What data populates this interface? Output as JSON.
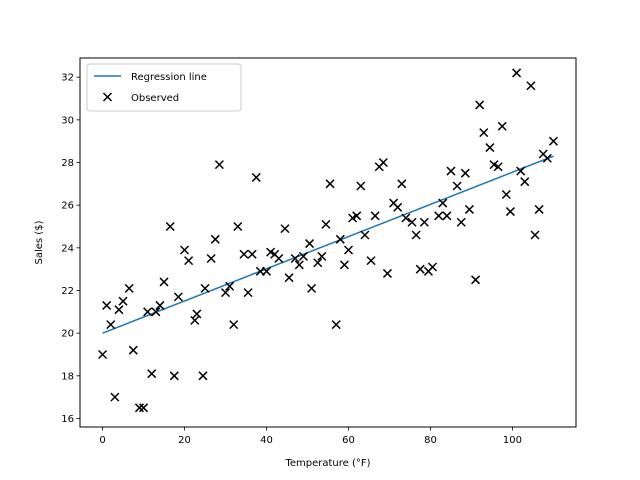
{
  "chart_data": {
    "type": "scatter",
    "title": "",
    "xlabel": "Temperature (°F)",
    "ylabel": "Sales ($)",
    "xlim": [
      -5.5,
      115.5
    ],
    "ylim": [
      15.6,
      32.9
    ],
    "xticks": [
      0,
      20,
      40,
      60,
      80,
      100
    ],
    "yticks": [
      16,
      18,
      20,
      22,
      24,
      26,
      28,
      30,
      32
    ],
    "grid": false,
    "legend_position": "top-left",
    "colors": {
      "line": "#1f77b4",
      "marker": "#000000"
    },
    "series": [
      {
        "name": "Regression line",
        "kind": "line",
        "x": [
          0,
          110
        ],
        "y": [
          20.0,
          28.3
        ]
      },
      {
        "name": "Observed",
        "kind": "scatter",
        "marker": "x",
        "points": [
          [
            0,
            19.0
          ],
          [
            1,
            21.3
          ],
          [
            2,
            20.4
          ],
          [
            3,
            17.0
          ],
          [
            4,
            21.1
          ],
          [
            5,
            21.5
          ],
          [
            6.5,
            22.1
          ],
          [
            7.5,
            19.2
          ],
          [
            9,
            16.5
          ],
          [
            10,
            16.5
          ],
          [
            11,
            21.0
          ],
          [
            12,
            18.1
          ],
          [
            13,
            21.0
          ],
          [
            14,
            21.3
          ],
          [
            15,
            22.4
          ],
          [
            16.5,
            25.0
          ],
          [
            17.5,
            18.0
          ],
          [
            18.5,
            21.7
          ],
          [
            20,
            23.9
          ],
          [
            21,
            23.4
          ],
          [
            22.5,
            20.6
          ],
          [
            23,
            20.9
          ],
          [
            24.5,
            18.0
          ],
          [
            25,
            22.1
          ],
          [
            26.5,
            23.5
          ],
          [
            27.5,
            24.4
          ],
          [
            28.5,
            27.9
          ],
          [
            30,
            21.9
          ],
          [
            31,
            22.2
          ],
          [
            32,
            20.4
          ],
          [
            33,
            25.0
          ],
          [
            34.5,
            23.7
          ],
          [
            35.5,
            21.9
          ],
          [
            36.5,
            23.7
          ],
          [
            37.5,
            27.3
          ],
          [
            38.5,
            22.9
          ],
          [
            40,
            22.9
          ],
          [
            41,
            23.8
          ],
          [
            42,
            23.7
          ],
          [
            43,
            23.5
          ],
          [
            44.5,
            24.9
          ],
          [
            45.5,
            22.6
          ],
          [
            47,
            23.5
          ],
          [
            48,
            23.2
          ],
          [
            49,
            23.6
          ],
          [
            50.5,
            24.2
          ],
          [
            51,
            22.1
          ],
          [
            52.5,
            23.3
          ],
          [
            53.5,
            23.6
          ],
          [
            54.5,
            25.1
          ],
          [
            55.5,
            27.0
          ],
          [
            57,
            20.4
          ],
          [
            58,
            24.4
          ],
          [
            59,
            23.2
          ],
          [
            60,
            23.9
          ],
          [
            61,
            25.4
          ],
          [
            62,
            25.5
          ],
          [
            63,
            26.9
          ],
          [
            64,
            24.6
          ],
          [
            65.5,
            23.4
          ],
          [
            66.5,
            25.5
          ],
          [
            67.5,
            27.8
          ],
          [
            68.5,
            28.0
          ],
          [
            69.5,
            22.8
          ],
          [
            71,
            26.1
          ],
          [
            72,
            25.9
          ],
          [
            73,
            27.0
          ],
          [
            74,
            25.4
          ],
          [
            75.5,
            25.2
          ],
          [
            76.5,
            24.6
          ],
          [
            77.5,
            23.0
          ],
          [
            78.5,
            25.2
          ],
          [
            79.5,
            22.9
          ],
          [
            80.5,
            23.1
          ],
          [
            82,
            25.5
          ],
          [
            83,
            26.1
          ],
          [
            84,
            25.5
          ],
          [
            85,
            27.6
          ],
          [
            86.5,
            26.9
          ],
          [
            87.5,
            25.2
          ],
          [
            88.5,
            27.5
          ],
          [
            89.5,
            25.8
          ],
          [
            91,
            22.5
          ],
          [
            92,
            30.7
          ],
          [
            93,
            29.4
          ],
          [
            94.5,
            28.7
          ],
          [
            95.5,
            27.9
          ],
          [
            96.5,
            27.8
          ],
          [
            97.5,
            29.7
          ],
          [
            98.5,
            26.5
          ],
          [
            99.5,
            25.7
          ],
          [
            101,
            32.2
          ],
          [
            102,
            27.6
          ],
          [
            103,
            27.1
          ],
          [
            104.5,
            31.6
          ],
          [
            105.5,
            24.6
          ],
          [
            106.5,
            25.8
          ],
          [
            107.5,
            28.4
          ],
          [
            108.5,
            28.2
          ],
          [
            110,
            29.0
          ]
        ]
      }
    ]
  }
}
